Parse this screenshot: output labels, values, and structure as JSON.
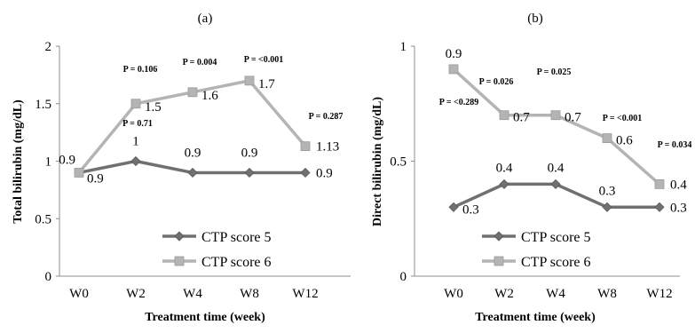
{
  "chart_data": [
    {
      "type": "line",
      "panel_label": "(a)",
      "xlabel": "Treatment time (week)",
      "ylabel": "Total bilirubin (mg/dL)",
      "categories": [
        "W0",
        "W2",
        "W4",
        "W8",
        "W12"
      ],
      "ylim": [
        0,
        2
      ],
      "yticks": [
        "0",
        "0.5",
        "1",
        "1.5",
        "2"
      ],
      "grid": false,
      "legend": "bottom-left",
      "series": [
        {
          "name": "CTP score 5",
          "values": [
            0.9,
            1,
            0.9,
            0.9,
            0.9
          ],
          "labels": [
            "0.9",
            "1",
            "0.9",
            "0.9",
            "0.9"
          ],
          "color": "#707070",
          "marker": "diamond"
        },
        {
          "name": "CTP score 6",
          "values": [
            0.9,
            1.5,
            1.6,
            1.7,
            1.13
          ],
          "labels": [
            "0.9",
            "1.5",
            "1.6",
            "1.7",
            "1.13"
          ],
          "color": "#b4b4b4",
          "marker": "square"
        }
      ],
      "annotations": [
        "P = 0.106",
        "P = 0.71",
        "P = 0.004",
        "P = <0.001",
        "P = 0.287"
      ]
    },
    {
      "type": "line",
      "panel_label": "(b)",
      "xlabel": "Treatment time (week)",
      "ylabel": "Direct bilirubin (mg/dL)",
      "categories": [
        "W0",
        "W2",
        "W4",
        "W8",
        "W12"
      ],
      "ylim": [
        0,
        1
      ],
      "yticks": [
        "0",
        "0.5",
        "1"
      ],
      "grid": false,
      "legend": "bottom-left",
      "series": [
        {
          "name": "CTP score 5",
          "values": [
            0.3,
            0.4,
            0.4,
            0.3,
            0.3
          ],
          "labels": [
            "0.3",
            "0.4",
            "0.4",
            "0.3",
            "0.3"
          ],
          "color": "#707070",
          "marker": "diamond"
        },
        {
          "name": "CTP score 6",
          "values": [
            0.9,
            0.7,
            0.7,
            0.6,
            0.4
          ],
          "labels": [
            "0.9",
            "0.7",
            "0.7",
            "0.6",
            "0.4"
          ],
          "color": "#b4b4b4",
          "marker": "square"
        }
      ],
      "annotations": [
        "P = <0.289",
        "P = 0.026",
        "P = 0.025",
        "P = <0.001",
        "P = 0.034"
      ]
    }
  ]
}
